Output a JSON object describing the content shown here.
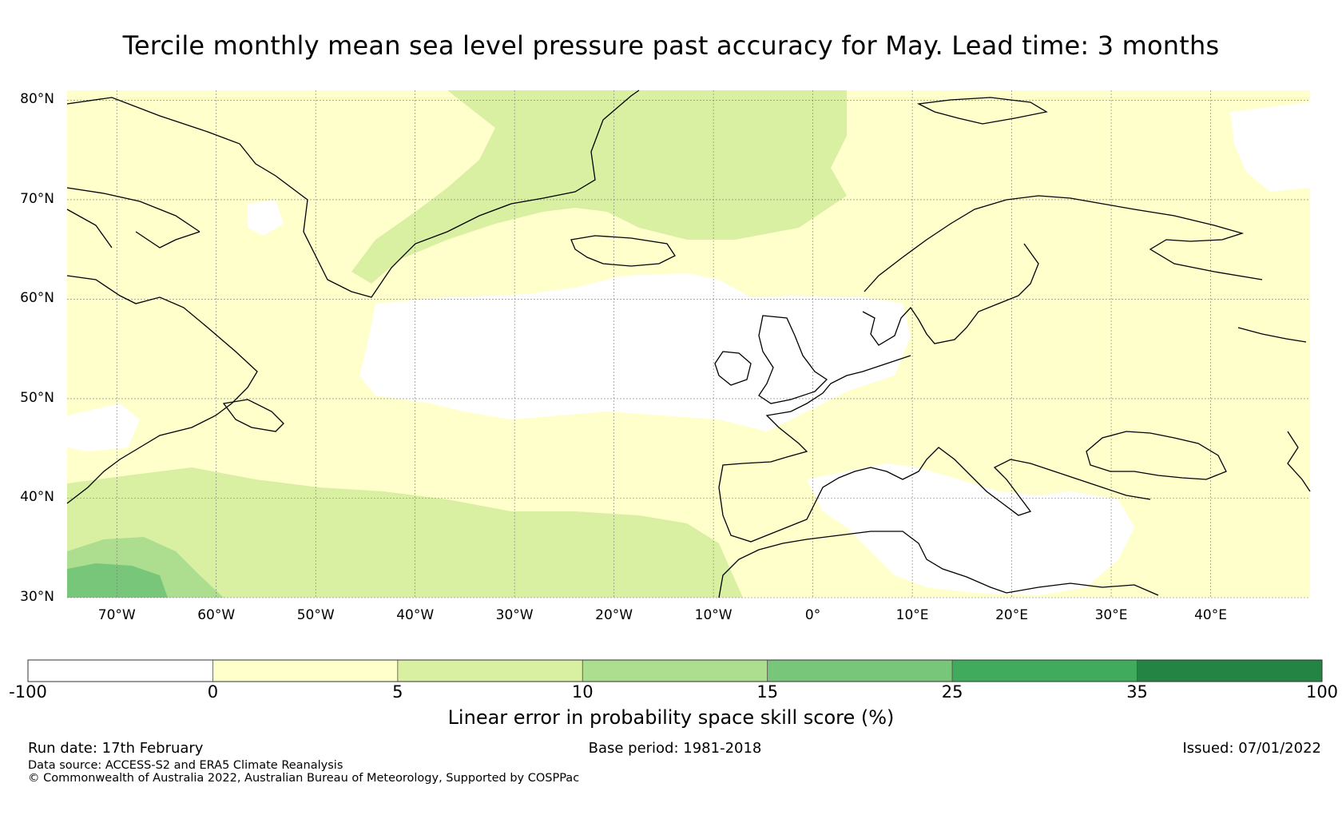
{
  "title": "Tercile monthly mean sea level pressure past accuracy for May. Lead time: 3 months",
  "map": {
    "lat_labels": [
      "80°N",
      "70°N",
      "60°N",
      "50°N",
      "40°N",
      "30°N"
    ],
    "lon_labels": [
      "70°W",
      "60°W",
      "50°W",
      "40°W",
      "30°W",
      "20°W",
      "10°W",
      "0°",
      "10°E",
      "20°E",
      "30°E",
      "40°E"
    ],
    "lat_range": [
      30,
      81
    ],
    "lon_range": [
      -75,
      50
    ],
    "skill_regions": [
      {
        "name": "north-atlantic-white",
        "category": 0
      },
      {
        "name": "mediterranean-white",
        "category": 0
      },
      {
        "name": "north-atlantic-yellow",
        "category": 1
      },
      {
        "name": "greenland-sea-light-green",
        "category": 2
      },
      {
        "name": "subtropical-light-green",
        "category": 2
      },
      {
        "name": "southwest-green",
        "category": 3
      },
      {
        "name": "southwest-medium-green",
        "category": 4
      }
    ]
  },
  "colorbar": {
    "ticks": [
      "-100",
      "0",
      "5",
      "10",
      "15",
      "25",
      "35",
      "100"
    ],
    "colors": [
      "#ffffff",
      "#ffffcc",
      "#d9f0a3",
      "#addd8e",
      "#78c679",
      "#41ab5d",
      "#238443"
    ],
    "label": "Linear error in probability space skill score (%)"
  },
  "footer": {
    "run_date": "Run date: 17th February",
    "base_period": "Base period: 1981-2018",
    "issued": "Issued: 07/01/2022",
    "data_source": "Data source: ACCESS-S2 and ERA5 Climate Reanalysis",
    "copyright": "© Commonwealth of Australia 2022, Australian Bureau of Meteorology, Supported by COSPPac"
  }
}
